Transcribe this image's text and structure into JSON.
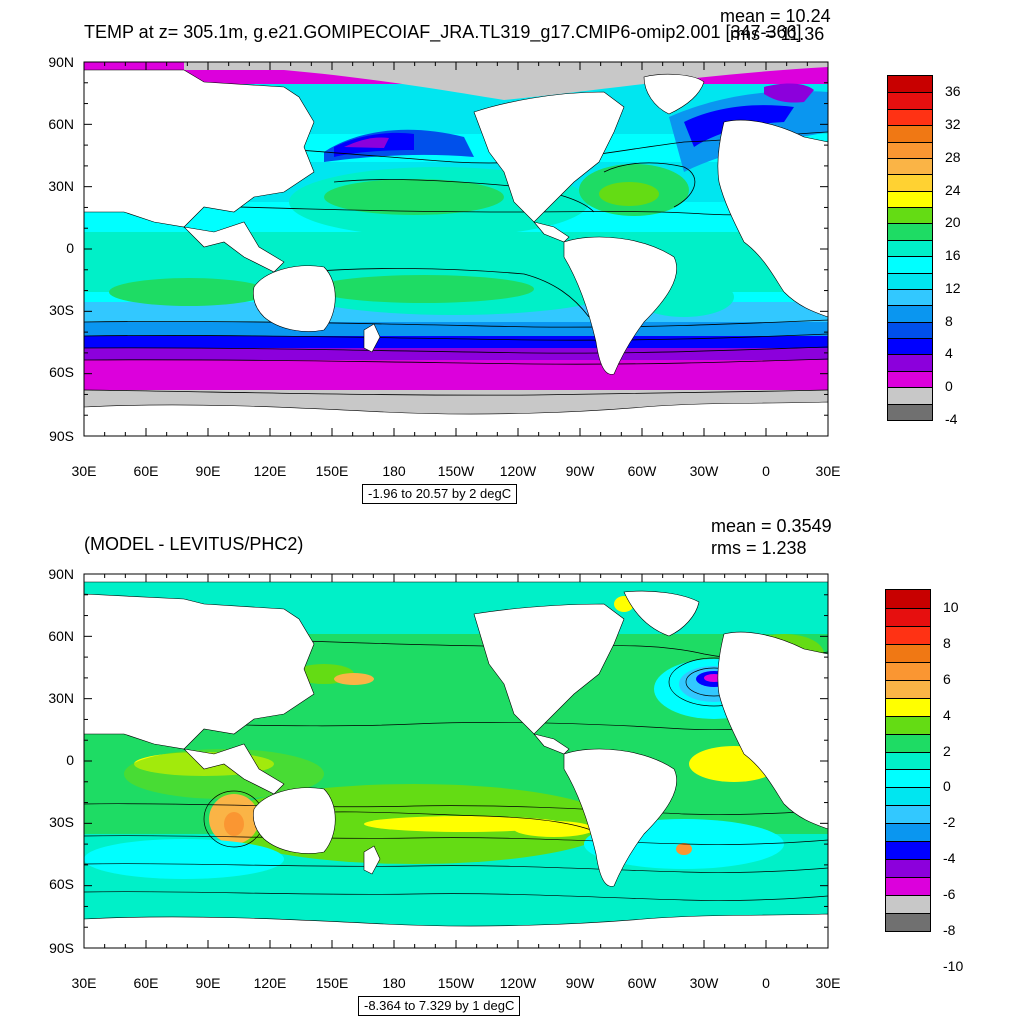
{
  "map_top": {
    "title": "TEMP at z= 305.1m, g.e21.GOMIPECOIAF_JRA.TL319_g17.CMIP6-omip2.001 [347-366]",
    "mean_label": "mean = 10.24",
    "rms_label": "rms = 11.36",
    "contour_info": "-1.96 to 20.57 by 2 degC",
    "colorbar": {
      "labels": [
        "36",
        "32",
        "28",
        "24",
        "20",
        "16",
        "12",
        "8",
        "4",
        "0",
        "-4"
      ],
      "colors": [
        "#c80000",
        "#e60f0f",
        "#ff3214",
        "#f07814",
        "#fa9632",
        "#fab446",
        "#ffd232",
        "#ffff00",
        "#64dc14",
        "#1edc64",
        "#00f0c8",
        "#00ffff",
        "#00e6f0",
        "#32c8ff",
        "#0a96f0",
        "#0050eb",
        "#0000ff",
        "#8c00dc",
        "#dc00dc",
        "#c8c8c8",
        "#707070"
      ]
    }
  },
  "map_bottom": {
    "title": "(MODEL - LEVITUS/PHC2)",
    "mean_label": "mean = 0.3549",
    "rms_label": "rms = 1.238",
    "contour_info": "-8.364 to 7.329 by 1 degC",
    "colorbar": {
      "labels": [
        "10",
        "8",
        "6",
        "4",
        "2",
        "0",
        "-2",
        "-4",
        "-6",
        "-8",
        "-10"
      ],
      "colors": [
        "#c80000",
        "#e60f0f",
        "#ff3214",
        "#f07814",
        "#fa9632",
        "#fab446",
        "#ffff00",
        "#64dc14",
        "#1edc64",
        "#00f0c8",
        "#00ffff",
        "#00e6f0",
        "#32c8ff",
        "#0a96f0",
        "#0000ff",
        "#8c00dc",
        "#dc00dc",
        "#c8c8c8",
        "#707070"
      ]
    }
  },
  "axes": {
    "lat_labels": [
      "90N",
      "60N",
      "30N",
      "0",
      "30S",
      "60S",
      "90S"
    ],
    "lon_labels": [
      "30E",
      "60E",
      "90E",
      "120E",
      "150E",
      "180",
      "150W",
      "120W",
      "90W",
      "60W",
      "30W",
      "0",
      "30E"
    ]
  },
  "colors": {
    "land": "#ffffff",
    "sea_ice_gray": "#c8c8c8"
  }
}
